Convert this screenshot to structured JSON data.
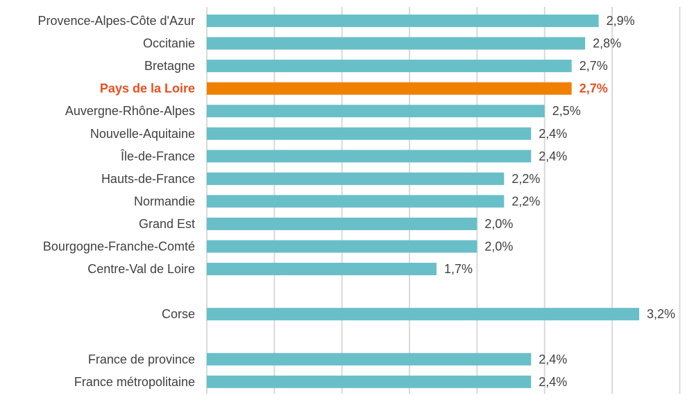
{
  "chart_data": {
    "type": "bar",
    "orientation": "horizontal",
    "categories": [
      "Provence-Alpes-Côte d'Azur",
      "Occitanie",
      "Bretagne",
      "Pays de la Loire",
      "Auvergne-Rhône-Alpes",
      "Nouvelle-Aquitaine",
      "Île-de-France",
      "Hauts-de-France",
      "Normandie",
      "Grand Est",
      "Bourgogne-Franche-Comté",
      "Centre-Val de Loire",
      "",
      "Corse",
      "",
      "France de province",
      "France métropolitaine"
    ],
    "values": [
      2.9,
      2.8,
      2.7,
      2.7,
      2.5,
      2.4,
      2.4,
      2.2,
      2.2,
      2.0,
      2.0,
      1.7,
      null,
      3.2,
      null,
      2.4,
      2.4
    ],
    "value_labels": [
      "2,9%",
      "2,8%",
      "2,7%",
      "2,7%",
      "2,5%",
      "2,4%",
      "2,4%",
      "2,2%",
      "2,2%",
      "2,0%",
      "2,0%",
      "1,7%",
      "",
      "3,2%",
      "",
      "2,4%",
      "2,4%"
    ],
    "highlight_index": 3,
    "colors": {
      "bar": "#68bfc8",
      "highlight_bar": "#f08000",
      "highlight_text": "#e8501e",
      "text": "#404040",
      "grid": "#d9d9d9"
    },
    "xlim": [
      0,
      3.5
    ],
    "grid": true,
    "title": "",
    "xlabel": "",
    "ylabel": ""
  }
}
